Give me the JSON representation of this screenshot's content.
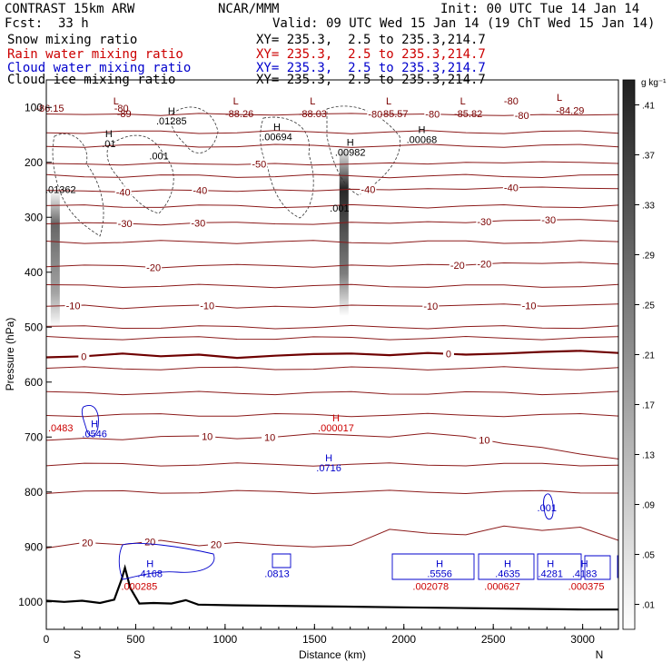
{
  "header": {
    "model": "CONTRAST 15km ARW",
    "center": "NCAR/MMM",
    "init": "Init: 00 UTC Tue 14 Jan 14",
    "fcst_label": "Fcst:",
    "fcst_value": "33 h",
    "valid": "Valid: 09 UTC Wed 15 Jan 14 (19 ChT Wed 15 Jan 14)",
    "fields": [
      {
        "name": "Snow mixing ratio",
        "xy": "XY= 235.3,  2.5 to 235.3,214.7",
        "color": "#000000"
      },
      {
        "name": "Rain water mixing ratio",
        "xy": "XY= 235.3,  2.5 to 235.3,214.7",
        "color": "#cc0000"
      },
      {
        "name": "Cloud water mixing ratio",
        "xy": "XY= 235.3,  2.5 to 235.3,214.7",
        "color": "#0000cc"
      },
      {
        "name": "Cloud ice mixing ratio",
        "xy": "XY= 235.3,  2.5 to 235.3,214.7",
        "color": "#000000"
      }
    ]
  },
  "chart_data": {
    "type": "cross-section",
    "xlabel": "Distance (km)",
    "ylabel": "Pressure (hPa)",
    "xlim": [
      0,
      3200
    ],
    "ylim": [
      1050,
      50
    ],
    "x_ticks": [
      0,
      500,
      1000,
      1500,
      2000,
      2500,
      3000
    ],
    "y_ticks": [
      100,
      200,
      300,
      400,
      500,
      600,
      700,
      800,
      900,
      1000
    ],
    "x_end_labels": {
      "left": "S",
      "right": "N"
    },
    "colorbar": {
      "unit": "g kg⁻¹",
      "levels": [
        ".01",
        ".05",
        ".09",
        ".13",
        ".17",
        ".21",
        ".25",
        ".29",
        ".33",
        ".37",
        ".41"
      ]
    },
    "temperature_contours": [
      {
        "label": "0",
        "p": [
          555,
          553,
          548,
          553,
          550,
          556,
          552,
          549,
          548,
          551,
          547,
          550,
          548,
          545,
          543,
          547
        ],
        "bold": true
      },
      {
        "label": "10",
        "p": [
          706,
          702,
          705,
          699,
          698,
          703,
          700,
          694,
          697,
          700,
          693,
          699,
          712,
          719,
          731,
          740
        ],
        "labels_at": [
          {
            "x": 900,
            "t": "10"
          },
          {
            "x": 1250,
            "t": "10"
          },
          {
            "x": 2450,
            "t": "10"
          }
        ]
      },
      {
        "label": "20",
        "p": [
          902,
          892,
          896,
          888,
          898,
          892,
          897,
          900,
          897,
          868,
          875,
          878,
          862,
          870,
          864,
          888
        ],
        "labels_at": [
          {
            "x": 230,
            "t": "20"
          },
          {
            "x": 580,
            "t": "20"
          },
          {
            "x": 950,
            "t": "20"
          }
        ]
      },
      {
        "label": "-10",
        "p": [
          462,
          460,
          466,
          462,
          460,
          465,
          462,
          464,
          460,
          461,
          462,
          460,
          458,
          462,
          460,
          458
        ],
        "labels_at": [
          {
            "x": 150,
            "t": "-10"
          },
          {
            "x": 900,
            "t": "-10"
          },
          {
            "x": 2150,
            "t": "-10"
          },
          {
            "x": 2700,
            "t": "-10"
          }
        ]
      },
      {
        "label": "-20",
        "p": [
          390,
          387,
          388,
          392,
          388,
          386,
          388,
          391,
          387,
          389,
          386,
          387,
          383,
          384,
          382,
          385
        ],
        "labels_at": [
          {
            "x": 600,
            "t": "-20"
          },
          {
            "x": 2300,
            "t": "-20"
          },
          {
            "x": 2450,
            "t": "-20"
          }
        ]
      },
      {
        "label": "-30",
        "p": [
          312,
          310,
          311,
          314,
          310,
          309,
          312,
          313,
          309,
          311,
          308,
          310,
          306,
          305,
          304,
          307
        ],
        "labels_at": [
          {
            "x": 440,
            "t": "-30"
          },
          {
            "x": 850,
            "t": "-30"
          },
          {
            "x": 2450,
            "t": "-30"
          },
          {
            "x": 2810,
            "t": "-30"
          }
        ]
      },
      {
        "label": "-40",
        "p": [
          251,
          252,
          254,
          250,
          251,
          253,
          250,
          252,
          249,
          250,
          248,
          249,
          246,
          245,
          247,
          248
        ],
        "labels_at": [
          {
            "x": 430,
            "t": "-40"
          },
          {
            "x": 860,
            "t": "-40"
          },
          {
            "x": 1800,
            "t": "-40"
          },
          {
            "x": 2600,
            "t": "-40"
          }
        ]
      },
      {
        "label": "-50",
        "p": [
          202,
          203,
          205,
          201,
          203,
          204,
          202,
          205,
          203,
          201,
          203,
          200,
          201,
          199,
          200,
          202
        ],
        "labels_at": [
          {
            "x": 1190,
            "t": "-50"
          }
        ]
      },
      {
        "label": "-80",
        "p": [
          112,
          113,
          112,
          115,
          111,
          113,
          114,
          112,
          111,
          113,
          112,
          114,
          115,
          113,
          114,
          113
        ],
        "labels_at": [
          {
            "x": 1840,
            "t": "-80"
          },
          {
            "x": 2160,
            "t": "-80"
          },
          {
            "x": 2660,
            "t": "-80"
          }
        ]
      }
    ],
    "temperature_labels_top": [
      {
        "x": 20,
        "p": 108,
        "t": "-86.15"
      },
      {
        "x": 420,
        "p": 108,
        "t": "-80"
      },
      {
        "x": 435,
        "p": 118,
        "t": "-89"
      },
      {
        "x": 1080,
        "p": 118,
        "t": "-88.26"
      },
      {
        "x": 1490,
        "p": 118,
        "t": "-88.03"
      },
      {
        "x": 1945,
        "p": 118,
        "t": "-85.57"
      },
      {
        "x": 2360,
        "p": 118,
        "t": "-85.82"
      },
      {
        "x": 2600,
        "p": 95,
        "t": "-80"
      },
      {
        "x": 2930,
        "p": 112,
        "t": "-84.29"
      }
    ],
    "L_marks": [
      {
        "x": 390,
        "p": 95
      },
      {
        "x": 1060,
        "p": 95
      },
      {
        "x": 1490,
        "p": 95
      },
      {
        "x": 1915,
        "p": 95
      },
      {
        "x": 2330,
        "p": 95
      },
      {
        "x": 2870,
        "p": 88
      }
    ],
    "snow_annotations": [
      {
        "x": 700,
        "p": 131,
        "h": "H",
        "v": ".01285"
      },
      {
        "x": 350,
        "p": 172,
        "h": "H",
        "v": ".01"
      },
      {
        "x": 630,
        "p": 195,
        "h": "",
        "v": ".001"
      },
      {
        "x": 1290,
        "p": 160,
        "h": "H",
        "v": ".00694"
      },
      {
        "x": 1700,
        "p": 188,
        "h": "H",
        "v": ".00982"
      },
      {
        "x": 2100,
        "p": 165,
        "h": "H",
        "v": ".00068"
      },
      {
        "x": 80,
        "p": 256,
        "h": "",
        "v": ".01362"
      },
      {
        "x": 1640,
        "p": 290,
        "h": "",
        "v": ".001"
      }
    ],
    "rain_annotations": [
      {
        "x": 80,
        "p": 690,
        "h": "",
        "v": ".0483"
      },
      {
        "x": 1620,
        "p": 690,
        "h": "H",
        "v": ".000017"
      },
      {
        "x": 520,
        "p": 978,
        "h": "",
        "v": ".000285"
      },
      {
        "x": 2150,
        "p": 978,
        "h": "",
        "v": ".002078"
      },
      {
        "x": 2550,
        "p": 978,
        "h": "",
        "v": ".000627"
      },
      {
        "x": 3020,
        "p": 978,
        "h": "",
        "v": ".000375"
      }
    ],
    "cloud_water_annotations": [
      {
        "x": 270,
        "p": 700,
        "h": "H",
        "v": ".0546"
      },
      {
        "x": 1580,
        "p": 762,
        "h": "H",
        "v": ".0716"
      },
      {
        "x": 2800,
        "p": 835,
        "h": "",
        "v": ".001"
      },
      {
        "x": 580,
        "p": 955,
        "h": "H",
        "v": ".4168"
      },
      {
        "x": 1290,
        "p": 955,
        "h": "",
        "v": ".0813"
      },
      {
        "x": 2200,
        "p": 955,
        "h": "H",
        "v": ".5556"
      },
      {
        "x": 2580,
        "p": 955,
        "h": "H",
        "v": ".4635"
      },
      {
        "x": 2820,
        "p": 955,
        "h": "H",
        "v": ".4281"
      },
      {
        "x": 3010,
        "p": 955,
        "h": "H",
        "v": ".4183"
      }
    ],
    "ice_shading_columns": [
      {
        "x": 50,
        "p_top": 250,
        "p_bot": 500,
        "intensity": 0.6
      },
      {
        "x": 1665,
        "p_top": 170,
        "p_bot": 480,
        "intensity": 0.85
      }
    ],
    "terrain": {
      "x": [
        0,
        100,
        200,
        300,
        380,
        420,
        440,
        470,
        520,
        600,
        700,
        780,
        850,
        1000,
        1500,
        2000,
        2500,
        3000,
        3200
      ],
      "p": [
        998,
        1000,
        998,
        1002,
        996,
        960,
        938,
        975,
        1003,
        1002,
        1003,
        997,
        1005,
        1006,
        1008,
        1010,
        1012,
        1014,
        1014
      ]
    }
  }
}
